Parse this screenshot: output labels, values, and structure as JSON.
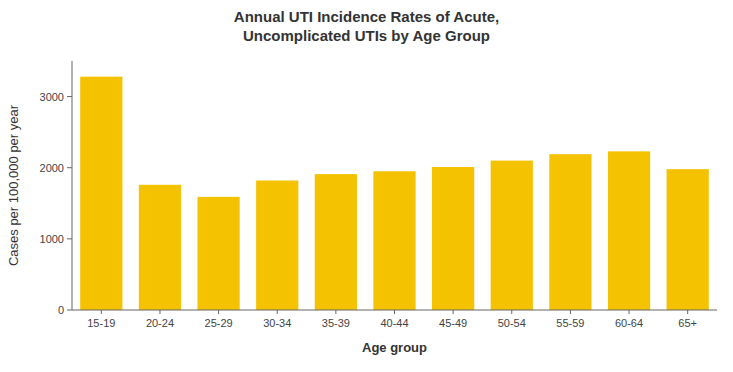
{
  "chart_data": {
    "type": "bar",
    "title": "Annual UTI Incidence Rates of Acute,\nUncomplicated UTIs by Age Group",
    "xlabel": "Age group",
    "ylabel": "Cases per 100,000 per year",
    "categories": [
      "15-19",
      "20-24",
      "25-29",
      "30-34",
      "35-39",
      "40-44",
      "45-49",
      "50-54",
      "55-59",
      "60-64",
      "65+"
    ],
    "values": [
      3280,
      1760,
      1590,
      1820,
      1910,
      1950,
      2010,
      2100,
      2190,
      2230,
      1980
    ],
    "color": "#F5C200",
    "ylim": [
      0,
      3500
    ],
    "yticks": [
      0,
      1000,
      2000,
      3000
    ],
    "grid": false
  }
}
